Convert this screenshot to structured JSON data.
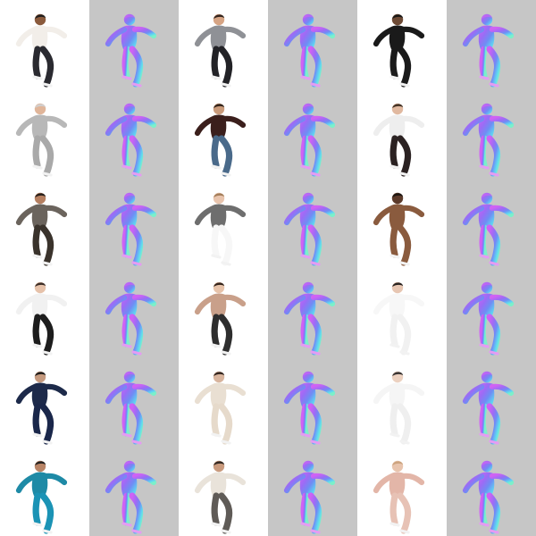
{
  "figure": {
    "columns": 6,
    "rows": 6,
    "column_kinds": [
      "photo",
      "normal",
      "photo",
      "normal",
      "photo",
      "normal"
    ],
    "background_colors": {
      "photo": "#ffffff",
      "normal": "#c6c6c6"
    }
  },
  "normal_map_colors": [
    "#d062f4",
    "#9b6cf5",
    "#6f8df4",
    "#5fd7f2",
    "#7cf0c9",
    "#e49cf2"
  ],
  "subjects": [
    {
      "top": "#f2eee9",
      "bottom": "#2a2a30",
      "skin": "#8a5a3c",
      "hair": "#1b1b1b"
    },
    {
      "top": "#8f9196",
      "bottom": "#222226",
      "skin": "#d6a484",
      "hair": "#2a1f19"
    },
    {
      "top": "#1a1a1a",
      "bottom": "#1a1a1a",
      "skin": "#6d4a35",
      "hair": "#151515"
    },
    {
      "top": "#b8b8b8",
      "bottom": "#a9a9a9",
      "skin": "#e0b599",
      "hair": "#d0d0d0"
    },
    {
      "top": "#3b1f1c",
      "bottom": "#4a6a8a",
      "skin": "#c99a7a",
      "hair": "#2a1d16"
    },
    {
      "top": "#eeeeee",
      "bottom": "#2b2222",
      "skin": "#e1b9a0",
      "hair": "#3a2a1f"
    },
    {
      "top": "#6b645d",
      "bottom": "#3a332c",
      "skin": "#b57f60",
      "hair": "#1f1a16"
    },
    {
      "top": "#6e6e6e",
      "bottom": "#f7f7f7",
      "skin": "#e8c4ad",
      "hair": "#a07a55"
    },
    {
      "top": "#8a5b3e",
      "bottom": "#8a5b3e",
      "skin": "#5c3a2a",
      "hair": "#1a1410"
    },
    {
      "top": "#f1f1f1",
      "bottom": "#1d1d1d",
      "skin": "#e6c2aa",
      "hair": "#332620"
    },
    {
      "top": "#c9a08a",
      "bottom": "#2e2e2e",
      "skin": "#e7c3aa",
      "hair": "#2a1b14"
    },
    {
      "top": "#f7f7f7",
      "bottom": "#f1f1f1",
      "skin": "#e7c6b2",
      "hair": "#1f1a18"
    },
    {
      "top": "#1d2a4a",
      "bottom": "#1a274a",
      "skin": "#c59a7f",
      "hair": "#161616"
    },
    {
      "top": "#e9dfd2",
      "bottom": "#e6dacb",
      "skin": "#d8b49d",
      "hair": "#2b1f18"
    },
    {
      "top": "#f5f5f5",
      "bottom": "#efefef",
      "skin": "#ecd1c0",
      "hair": "#2f2b2a"
    },
    {
      "top": "#1e8aa6",
      "bottom": "#1b93b5",
      "skin": "#b88466",
      "hair": "#1c1c1c"
    },
    {
      "top": "#e9e3da",
      "bottom": "#5f5b57",
      "skin": "#c99a7d",
      "hair": "#2b231e"
    },
    {
      "top": "#e3b6a8",
      "bottom": "#e7c2b5",
      "skin": "#e8c4ad",
      "hair": "#caa17b"
    }
  ]
}
